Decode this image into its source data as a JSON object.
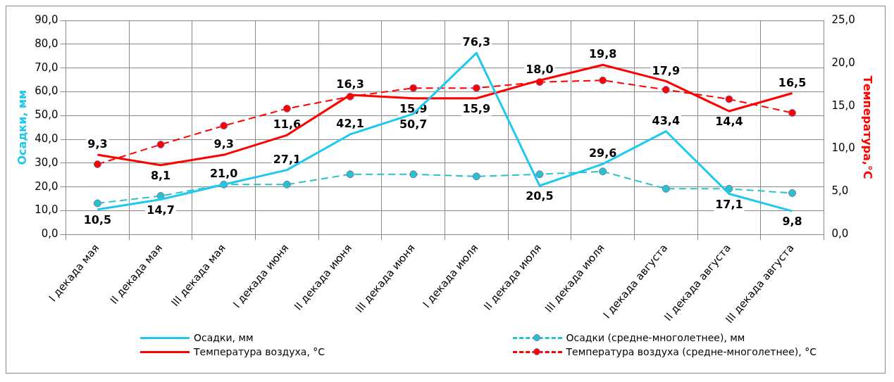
{
  "chart_data": {
    "type": "line",
    "ylabel": "Осадки, мм",
    "y2label": "Температура,°C",
    "categories": [
      "I декада мая",
      "II декада мая",
      "III декада мая",
      "I декада июня",
      "II декада июня",
      "III декада июня",
      "I декада июля",
      "II декада июля",
      "III декада июля",
      "I декада августа",
      "II декада августа",
      "III декада августа"
    ],
    "series": [
      {
        "name": "Осадки, мм",
        "color": "#1ec8f0",
        "marker": "none",
        "line_style": "solid",
        "values": [
          10.5,
          14.7,
          21.0,
          27.1,
          42.1,
          50.7,
          76.3,
          20.5,
          29.6,
          43.4,
          17.1,
          9.8
        ],
        "value_labels": [
          "10,5",
          "14,7",
          "21,0",
          "27,1",
          "42,1",
          "50,7",
          "76,3",
          "20,5",
          "29,6",
          "43,4",
          "17,1",
          "9,8"
        ]
      },
      {
        "name": "Осадки (средне-многолетнее), мм",
        "color": "#26c4c8",
        "marker": "circle",
        "line_style": "dashed",
        "values": [
          13.1,
          16.2,
          21.0,
          21.0,
          25.3,
          25.3,
          24.4,
          25.3,
          26.5,
          19.2,
          19.2,
          17.4
        ]
      },
      {
        "name": "Температура воздуха, °C",
        "color": "#ff0000",
        "axis": "y2",
        "marker": "none",
        "line_style": "solid",
        "values": [
          9.3,
          8.1,
          9.3,
          11.6,
          16.3,
          15.9,
          15.9,
          18.0,
          19.8,
          17.9,
          14.4,
          16.5
        ],
        "value_labels": [
          "9,3",
          "8,1",
          "9,3",
          "11,6",
          "16,3",
          "15,9",
          "15,9",
          "18,0",
          "19,8",
          "17,9",
          "14,4",
          "16,5"
        ]
      },
      {
        "name": "Температура воздуха (средне-многолетнее), °C",
        "color": "#ff0000",
        "axis": "y2",
        "marker": "circle",
        "line_style": "dashed",
        "values": [
          8.2,
          10.5,
          12.7,
          14.7,
          16.1,
          17.1,
          17.1,
          17.8,
          18.0,
          16.9,
          15.8,
          14.2
        ]
      }
    ],
    "ylim": [
      0,
      90
    ],
    "yticks": [
      {
        "value": 0,
        "label": "0,0"
      },
      {
        "value": 10,
        "label": "10,0"
      },
      {
        "value": 20,
        "label": "20,0"
      },
      {
        "value": 30,
        "label": "30,0"
      },
      {
        "value": 40,
        "label": "40,0"
      },
      {
        "value": 50,
        "label": "50,0"
      },
      {
        "value": 60,
        "label": "60,0"
      },
      {
        "value": 70,
        "label": "70,0"
      },
      {
        "value": 80,
        "label": "80,0"
      },
      {
        "value": 90,
        "label": "90,0"
      }
    ],
    "y2lim": [
      0,
      25
    ],
    "y2ticks": [
      {
        "value": 0,
        "label": "0,0"
      },
      {
        "value": 5,
        "label": "5,0"
      },
      {
        "value": 10,
        "label": "10,0"
      },
      {
        "value": 15,
        "label": "15,0"
      },
      {
        "value": 20,
        "label": "20,0"
      },
      {
        "value": 25,
        "label": "25,0"
      }
    ],
    "grid": true,
    "legend": "bottom"
  }
}
